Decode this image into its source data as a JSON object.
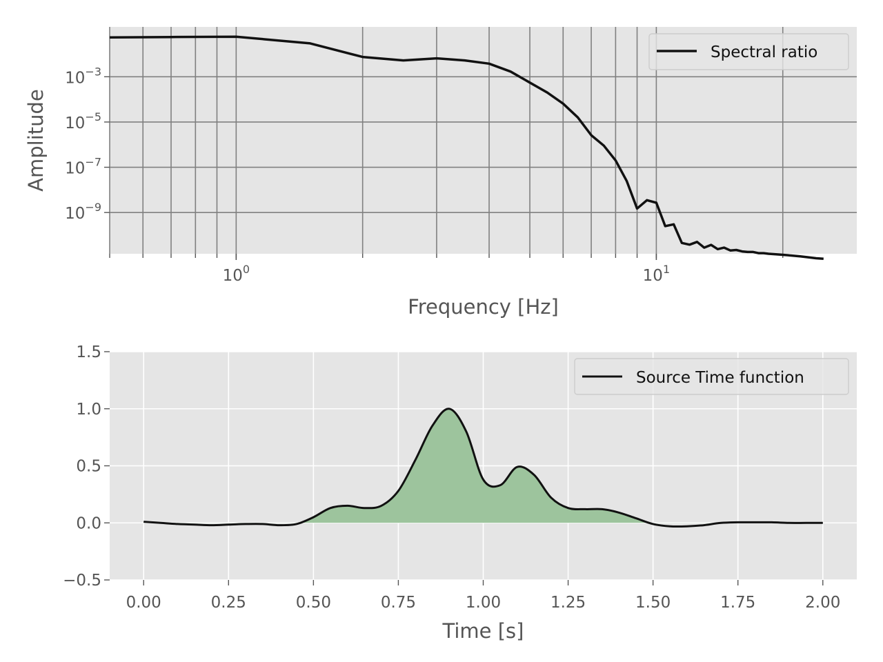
{
  "colors": {
    "axes_bg": "#e5e5e5",
    "grid_top": "#808080",
    "grid_bottom": "#ffffff",
    "line": "#111111",
    "fill": "#9dc49d",
    "tick_text": "#555555"
  },
  "chart_data": [
    {
      "type": "line",
      "xlabel": "Frequency [Hz]",
      "ylabel": "Amplitude",
      "xscale": "log",
      "yscale": "log",
      "xlim": [
        0.5,
        30
      ],
      "ylim": [
        1.5e-11,
        0.16
      ],
      "x_ticks": [
        {
          "value": 1,
          "base": "10",
          "exp": "0"
        },
        {
          "value": 10,
          "base": "10",
          "exp": "1"
        }
      ],
      "y_ticks": [
        {
          "value": 0.001,
          "base": "10",
          "exp": "−3"
        },
        {
          "value": 1e-05,
          "base": "10",
          "exp": "−5"
        },
        {
          "value": 1e-07,
          "base": "10",
          "exp": "−7"
        },
        {
          "value": 1e-09,
          "base": "10",
          "exp": "−9"
        }
      ],
      "x_minor_grid": [
        0.5,
        0.6,
        0.7,
        0.8,
        0.9,
        1,
        2,
        3,
        4,
        5,
        6,
        7,
        8,
        9,
        10,
        20
      ],
      "grid": true,
      "legend": "upper-right",
      "series": [
        {
          "name": "Spectral ratio",
          "x": [
            0.5,
            0.7,
            1.0,
            1.5,
            2.0,
            2.5,
            3.0,
            3.5,
            4.0,
            4.5,
            5.0,
            5.5,
            6.0,
            6.5,
            7.0,
            7.5,
            8.0,
            8.5,
            9.0,
            9.5,
            10.0,
            10.5,
            11.0,
            11.5,
            12.0,
            12.5,
            13.0,
            13.5,
            14.0,
            14.5,
            15.0,
            15.5,
            16.0,
            16.5,
            17.0,
            17.5,
            18.0,
            18.5,
            19.0,
            19.5,
            20.0,
            21.0,
            22.0,
            23.0,
            24.0,
            25.0
          ],
          "y": [
            0.055,
            0.057,
            0.059,
            0.03,
            0.0075,
            0.0053,
            0.0065,
            0.0053,
            0.0038,
            0.0017,
            0.00055,
            0.0002,
            6.5e-05,
            1.6e-05,
            2.6e-06,
            9e-07,
            2e-07,
            2.5e-08,
            1.5e-09,
            3.5e-09,
            2.7e-09,
            2.5e-10,
            3e-10,
            4.5e-11,
            3.8e-11,
            5e-11,
            2.8e-11,
            3.7e-11,
            2.4e-11,
            2.8e-11,
            2.1e-11,
            2.2e-11,
            1.9e-11,
            1.8e-11,
            1.8e-11,
            1.6e-11,
            1.6e-11,
            1.5e-11,
            1.45e-11,
            1.4e-11,
            1.35e-11,
            1.25e-11,
            1.15e-11,
            1.05e-11,
            9.5e-12,
            9e-12
          ]
        }
      ]
    },
    {
      "type": "area",
      "xlabel": "Time [s]",
      "ylabel": "",
      "xlim": [
        -0.1,
        2.1
      ],
      "ylim": [
        -0.5,
        1.5
      ],
      "x_ticks": [
        "0.00",
        "0.25",
        "0.50",
        "0.75",
        "1.00",
        "1.25",
        "1.50",
        "1.75",
        "2.00"
      ],
      "y_ticks": [
        "−0.5",
        "0.0",
        "0.5",
        "1.0",
        "1.5"
      ],
      "grid": true,
      "legend": "upper-right",
      "series": [
        {
          "name": "Source Time function",
          "x": [
            0.0,
            0.05,
            0.1,
            0.15,
            0.2,
            0.25,
            0.3,
            0.35,
            0.4,
            0.45,
            0.5,
            0.55,
            0.6,
            0.65,
            0.7,
            0.75,
            0.8,
            0.85,
            0.9,
            0.95,
            1.0,
            1.05,
            1.1,
            1.15,
            1.2,
            1.25,
            1.3,
            1.35,
            1.4,
            1.45,
            1.5,
            1.55,
            1.6,
            1.65,
            1.7,
            1.75,
            1.8,
            1.85,
            1.9,
            1.95,
            2.0
          ],
          "y": [
            0.01,
            0.0,
            -0.01,
            -0.015,
            -0.02,
            -0.015,
            -0.01,
            -0.01,
            -0.02,
            -0.01,
            0.05,
            0.13,
            0.15,
            0.13,
            0.15,
            0.28,
            0.55,
            0.85,
            1.0,
            0.8,
            0.38,
            0.33,
            0.49,
            0.42,
            0.22,
            0.13,
            0.12,
            0.12,
            0.09,
            0.04,
            -0.01,
            -0.03,
            -0.03,
            -0.02,
            0.0,
            0.005,
            0.005,
            0.005,
            0.0,
            0.0,
            0.0
          ]
        }
      ]
    }
  ]
}
